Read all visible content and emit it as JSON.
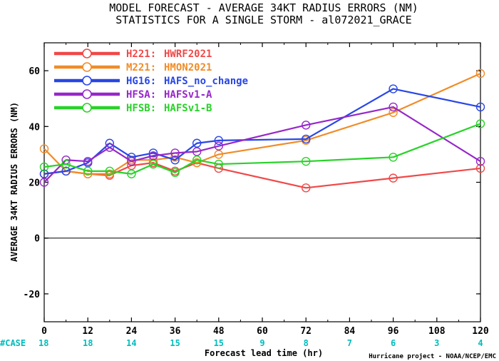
{
  "chart_data": {
    "type": "line",
    "title": "MODEL FORECAST - AVERAGE 34KT RADIUS ERRORS (NM)",
    "subtitle": "STATISTICS FOR A SINGLE STORM - al072021_GRACE",
    "xlabel": "Forecast lead time (hr)",
    "ylabel": "AVERAGE 34KT RADIUS ERRORS (NM)",
    "xlim": [
      0,
      120
    ],
    "ylim": [
      -30,
      70
    ],
    "xticks": [
      "0",
      "12",
      "24",
      "36",
      "48",
      "60",
      "72",
      "84",
      "96",
      "108",
      "120"
    ],
    "yticks": [
      "-20",
      "0",
      "20",
      "40",
      "60"
    ],
    "zero_line": true,
    "legend_position": "top-left",
    "series": [
      {
        "name": "H221:",
        "label": "HWRF2021",
        "color": "#f04848",
        "x": [
          0,
          6,
          12,
          18,
          24,
          30,
          36,
          42,
          48,
          72,
          96,
          120
        ],
        "y": [
          23,
          24,
          23,
          22.5,
          26,
          27,
          24,
          27,
          25,
          18,
          21.5,
          25
        ]
      },
      {
        "name": "M221:",
        "label": "HMON2021",
        "color": "#f08c28",
        "x": [
          0,
          6,
          12,
          18,
          24,
          30,
          36,
          42,
          48,
          72,
          96,
          120
        ],
        "y": [
          32,
          24,
          23,
          23,
          28,
          28,
          29,
          27,
          30,
          35,
          45,
          59
        ]
      },
      {
        "name": "HG16:",
        "label": "HAFS_no_change",
        "color": "#2846e6",
        "x": [
          0,
          6,
          12,
          18,
          24,
          30,
          36,
          42,
          48,
          72,
          96,
          120
        ],
        "y": [
          23,
          24,
          27,
          34,
          29,
          30.5,
          28,
          34,
          35,
          35.5,
          53.5,
          47
        ]
      },
      {
        "name": "HFSA:",
        "label": "HAFSv1-A",
        "color": "#9628c8",
        "x": [
          0,
          6,
          12,
          18,
          24,
          30,
          36,
          42,
          48,
          72,
          96,
          120
        ],
        "y": [
          20,
          28,
          27.5,
          32.5,
          27.5,
          29.5,
          30.5,
          31,
          33,
          40.5,
          47,
          27.5
        ]
      },
      {
        "name": "HFSB:",
        "label": "HAFSv1-B",
        "color": "#28d228",
        "x": [
          0,
          6,
          12,
          18,
          24,
          30,
          36,
          42,
          48,
          72,
          96,
          120
        ],
        "y": [
          25.5,
          26.5,
          24,
          24,
          23,
          26.5,
          23.5,
          28,
          26.5,
          27.5,
          29,
          41
        ]
      }
    ],
    "cases": {
      "label": "#CASE",
      "x": [
        0,
        12,
        24,
        36,
        48,
        60,
        72,
        84,
        96,
        108,
        120
      ],
      "values": [
        "18",
        "18",
        "14",
        "15",
        "15",
        "9",
        "8",
        "7",
        "6",
        "3",
        "4"
      ]
    },
    "credit": "Hurricane project - NOAA/NCEP/EMC"
  }
}
